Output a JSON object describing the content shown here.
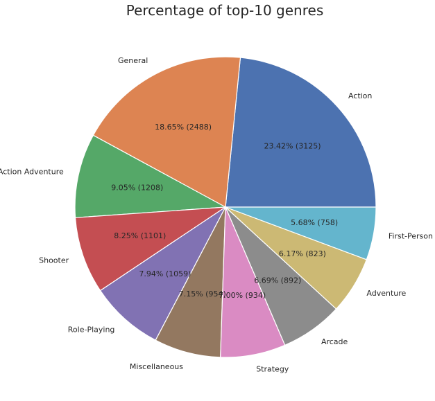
{
  "chart_data": {
    "type": "pie",
    "title": "Percentage of top-10 genres",
    "categories": [
      "Action",
      "General",
      "Action Adventure",
      "Shooter",
      "Role-Playing",
      "Miscellaneous",
      "Strategy",
      "Arcade",
      "Adventure",
      "First-Person"
    ],
    "values": [
      3125,
      2488,
      1208,
      1101,
      1059,
      954,
      934,
      892,
      823,
      758
    ],
    "percent_labels": [
      "23.42%  (3125)",
      "18.65%  (2488)",
      "9.05%  (1208)",
      "8.25%  (1101)",
      "7.94%  (1059)",
      "7.15%  (954)",
      "7.00%  (934)",
      "6.69%  (892)",
      "6.17%  (823)",
      "5.68%  (758)"
    ],
    "colors": [
      "#4c72b0",
      "#dd8452",
      "#55a868",
      "#c44e52",
      "#8172b3",
      "#937860",
      "#da8bc3",
      "#8c8c8c",
      "#ccb974",
      "#64b5cd"
    ],
    "start_angle_deg": 0,
    "direction": "counterclockwise"
  }
}
